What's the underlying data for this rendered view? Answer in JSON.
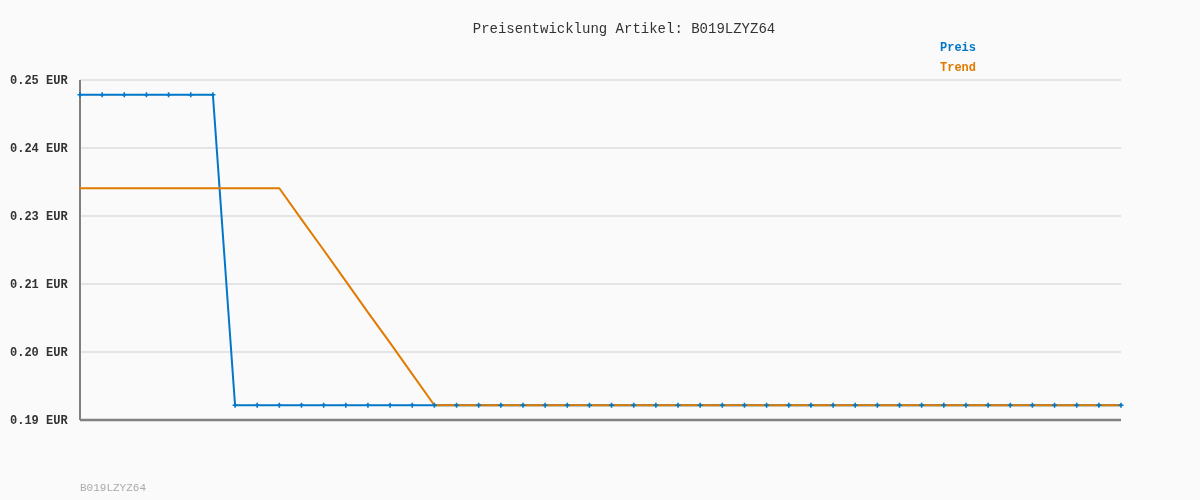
{
  "chart_data": {
    "type": "line",
    "title": "Preisentwicklung Artikel: B019LZYZ64",
    "categories": [
      null,
      null,
      null,
      null,
      null,
      null,
      null,
      null,
      null,
      null,
      null,
      null,
      null,
      null,
      null,
      null,
      null,
      null,
      null,
      null,
      null,
      null,
      null,
      null,
      null,
      null,
      null,
      null,
      null,
      null,
      null,
      null,
      null,
      null,
      null,
      null,
      null,
      null,
      null,
      null,
      null,
      null,
      null,
      null,
      null,
      null,
      null,
      null
    ],
    "series": [
      {
        "name": "Preis",
        "color": "#0077c8",
        "marker": "cross",
        "values": [
          0.2474,
          0.2474,
          0.2474,
          0.2474,
          0.2474,
          0.2474,
          0.2474,
          0.1926,
          0.1926,
          0.1926,
          0.1926,
          0.1926,
          0.1926,
          0.1926,
          0.1926,
          0.1926,
          0.1926,
          0.1926,
          0.1926,
          0.1926,
          0.1926,
          0.1926,
          0.1926,
          0.1926,
          0.1926,
          0.1926,
          0.1926,
          0.1926,
          0.1926,
          0.1926,
          0.1926,
          0.1926,
          0.1926,
          0.1926,
          0.1926,
          0.1926,
          0.1926,
          0.1926,
          0.1926,
          0.1926,
          0.1926,
          0.1926,
          0.1926,
          0.1926,
          0.1926,
          0.1926,
          0.1926,
          0.1926
        ]
      },
      {
        "name": "Trend",
        "color": "#e07b00",
        "marker": "none",
        "values": [
          0.2309,
          0.2309,
          0.2309,
          0.2309,
          0.2309,
          0.2309,
          0.2309,
          0.2309,
          0.2309,
          0.2309,
          0.2254,
          0.22,
          0.2145,
          0.209,
          0.2036,
          0.1981,
          0.1926,
          0.1926,
          0.1926,
          0.1926,
          0.1926,
          0.1926,
          0.1926,
          0.1926,
          0.1926,
          0.1926,
          0.1926,
          0.1926,
          0.1926,
          0.1926,
          0.1926,
          0.1926,
          0.1926,
          0.1926,
          0.1926,
          0.1926,
          0.1926,
          0.1926,
          0.1926,
          0.1926,
          0.1926,
          0.1926,
          0.1926,
          0.1926,
          0.1926,
          0.1926,
          0.1926,
          0.1926
        ]
      }
    ],
    "ylim": [
      0.19,
      0.25
    ],
    "yticks": [
      {
        "value": 0.19,
        "label": "0.19 EUR"
      },
      {
        "value": 0.202,
        "label": "0.20 EUR"
      },
      {
        "value": 0.214,
        "label": "0.21 EUR"
      },
      {
        "value": 0.226,
        "label": "0.23 EUR"
      },
      {
        "value": 0.238,
        "label": "0.24 EUR"
      },
      {
        "value": 0.25,
        "label": "0.25 EUR"
      }
    ],
    "tick_labels": "y",
    "grid": "y",
    "legend": "top right",
    "annotations": [
      "B019LZYZ64"
    ]
  }
}
